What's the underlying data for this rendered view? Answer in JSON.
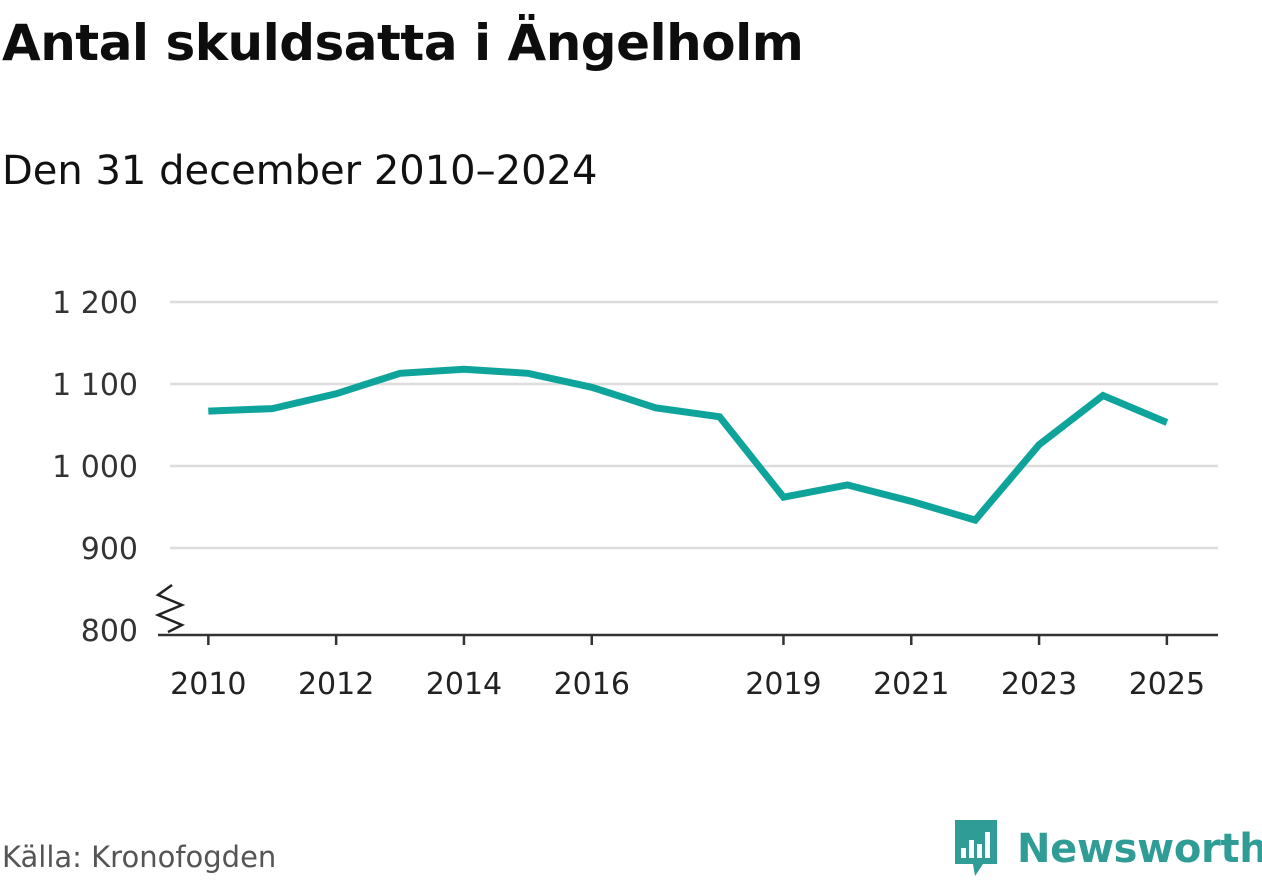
{
  "chart_data": {
    "type": "line",
    "title": "Antal skuldsatta i Ängelholm",
    "subtitle": "Den 31 december 2010–2024",
    "xlabel": "",
    "ylabel": "",
    "xlim": [
      2009.4,
      2025.8
    ],
    "ylim": [
      800,
      1200
    ],
    "y_ticks": [
      800,
      900,
      1000,
      1100,
      1200
    ],
    "y_tick_labels": [
      "800",
      "900",
      "1 000",
      "1 100",
      "1 200"
    ],
    "x_ticks": [
      2010,
      2012,
      2014,
      2016,
      2019,
      2021,
      2023,
      2025
    ],
    "x_tick_labels": [
      "2010",
      "2012",
      "2014",
      "2016",
      "2019",
      "2021",
      "2023",
      "2025"
    ],
    "axis_break": true,
    "grid": true,
    "series": [
      {
        "name": "Antal skuldsatta",
        "color": "#0fa49b",
        "x": [
          2010,
          2011,
          2012,
          2013,
          2014,
          2015,
          2016,
          2017,
          2018,
          2019,
          2020,
          2021,
          2022,
          2023,
          2024,
          2025
        ],
        "values": [
          1067,
          1070,
          1088,
          1113,
          1118,
          1113,
          1096,
          1071,
          1060,
          962,
          977,
          957,
          934,
          1026,
          1086,
          1053
        ]
      }
    ]
  },
  "source": "Källa: Kronofogden",
  "brand": {
    "name": "Newsworthy",
    "color": "#2f9c95",
    "icon": "bar-chart-speech-bubble-icon"
  }
}
